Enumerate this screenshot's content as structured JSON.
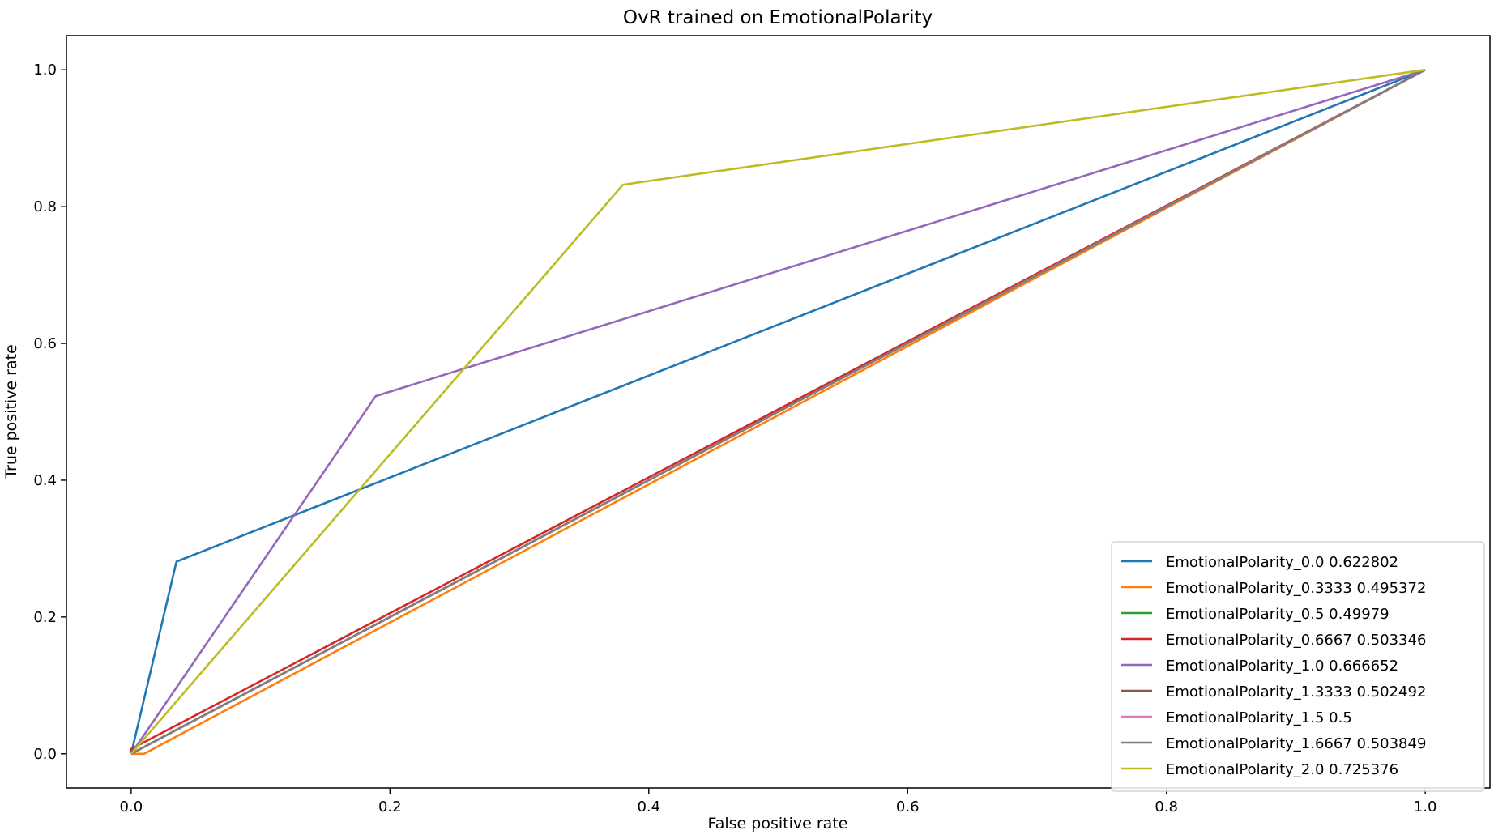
{
  "chart_data": {
    "type": "line",
    "title": "OvR trained on EmotionalPolarity",
    "xlabel": "False positive rate",
    "ylabel": "True positive rate",
    "xlim": [
      -0.05,
      1.05
    ],
    "ylim": [
      -0.05,
      1.05
    ],
    "xticks": [
      "0.0",
      "0.2",
      "0.4",
      "0.6",
      "0.8",
      "1.0"
    ],
    "yticks": [
      "0.0",
      "0.2",
      "0.4",
      "0.6",
      "0.8",
      "1.0"
    ],
    "grid": false,
    "legend_position": "lower-right",
    "series": [
      {
        "name": "EmotionalPolarity_0.0 0.622802",
        "color": "#1f77b4",
        "x": [
          0.0,
          0.035,
          1.0
        ],
        "y": [
          0.0,
          0.281,
          1.0
        ]
      },
      {
        "name": "EmotionalPolarity_0.3333 0.495372",
        "color": "#ff7f0e",
        "x": [
          0.0,
          0.01,
          1.0
        ],
        "y": [
          0.0,
          0.0,
          1.0
        ]
      },
      {
        "name": "EmotionalPolarity_0.5 0.49979",
        "color": "#2ca02c",
        "x": [
          0.0,
          1.0
        ],
        "y": [
          0.0,
          1.0
        ]
      },
      {
        "name": "EmotionalPolarity_0.6667 0.503346",
        "color": "#d62728",
        "x": [
          0.0,
          0.0,
          1.0
        ],
        "y": [
          0.0,
          0.007,
          1.0
        ]
      },
      {
        "name": "EmotionalPolarity_1.0 0.666652",
        "color": "#9467bd",
        "x": [
          0.0,
          0.189,
          1.0
        ],
        "y": [
          0.0,
          0.523,
          1.0
        ]
      },
      {
        "name": "EmotionalPolarity_1.3333 0.502492",
        "color": "#8c564b",
        "x": [
          0.0,
          1.0
        ],
        "y": [
          0.0,
          1.0
        ]
      },
      {
        "name": "EmotionalPolarity_1.5 0.5",
        "color": "#e377c2",
        "x": [
          0.0,
          1.0
        ],
        "y": [
          0.0,
          1.0
        ]
      },
      {
        "name": "EmotionalPolarity_1.6667 0.503849",
        "color": "#7f7f7f",
        "x": [
          0.0,
          1.0
        ],
        "y": [
          0.0,
          1.0
        ]
      },
      {
        "name": "EmotionalPolarity_2.0 0.725376",
        "color": "#bcbd22",
        "x": [
          0.0,
          0.38,
          1.0
        ],
        "y": [
          0.0,
          0.832,
          1.0
        ]
      }
    ]
  }
}
